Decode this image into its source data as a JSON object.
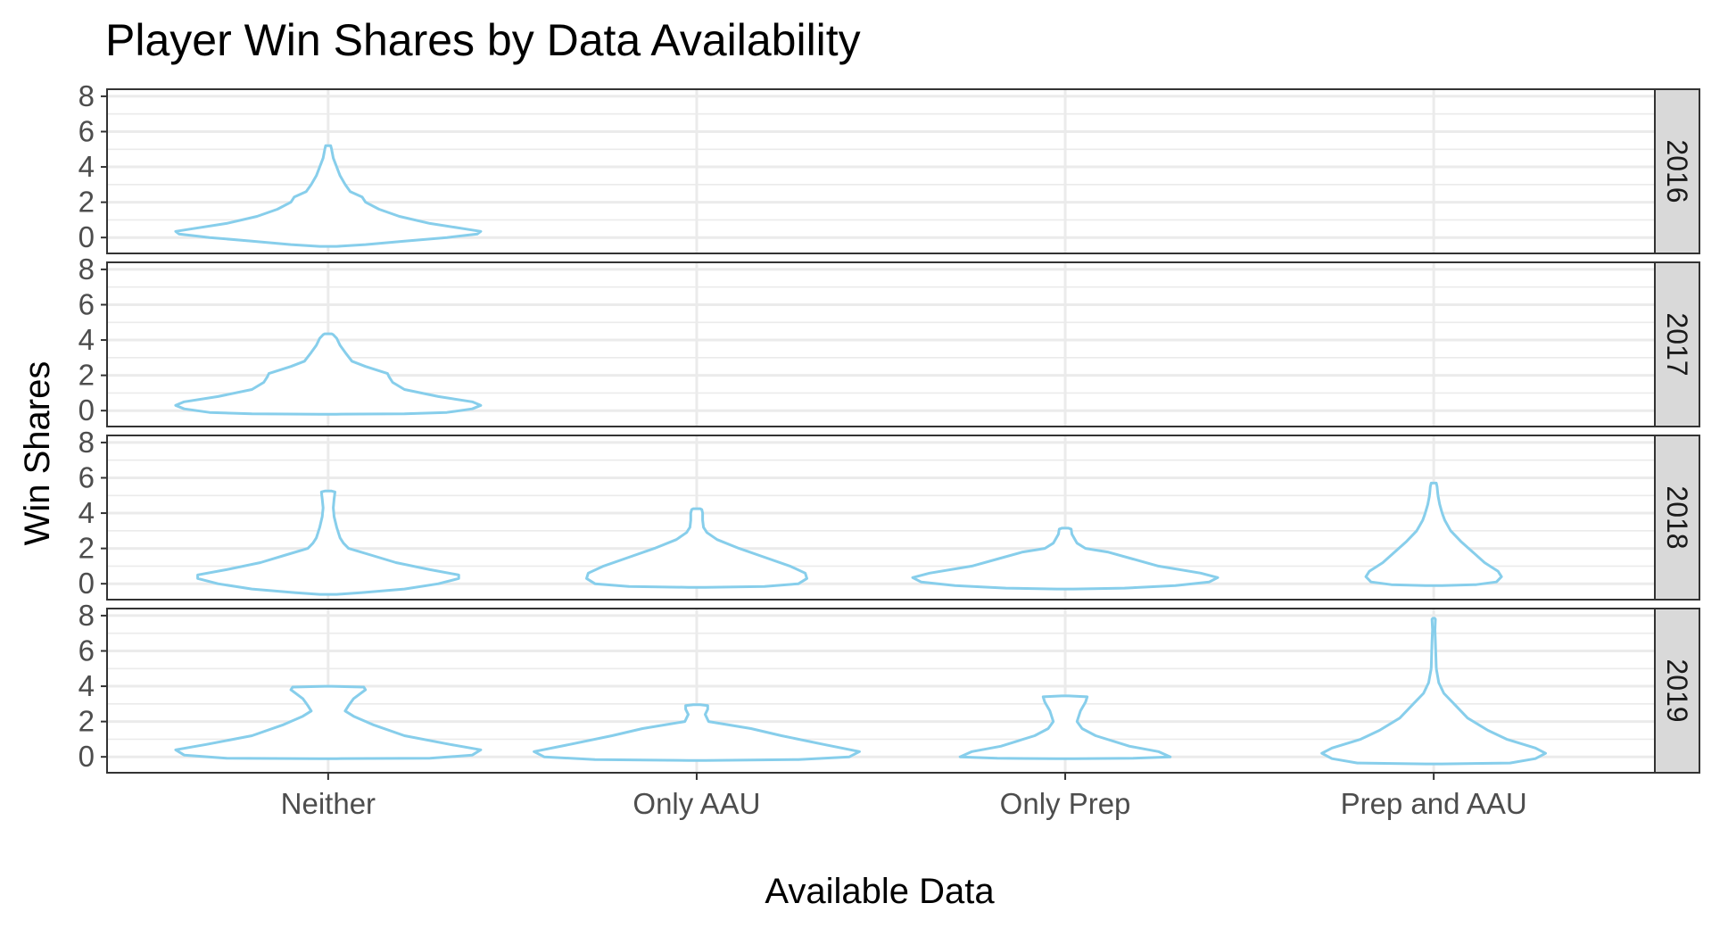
{
  "colors": {
    "violin_outline": "#87CEEB",
    "strip_fill": "#D9D9D9",
    "grid": "#EBEBEB"
  },
  "chart_data": {
    "type": "violin",
    "title": "Player Win Shares by Data Availability",
    "xlabel": "Available Data",
    "ylabel": "Win Shares",
    "categories": [
      "Neither",
      "Only AAU",
      "Only Prep",
      "Prep and AAU"
    ],
    "yticks": [
      0,
      2,
      4,
      6,
      8
    ],
    "ylim": [
      -0.9,
      8.4
    ],
    "grid": true,
    "facets": [
      {
        "label": "2016",
        "violins": [
          {
            "category": "Neither",
            "profile": [
              [
                -0.5,
                0.05
              ],
              [
                -0.4,
                0.22
              ],
              [
                -0.2,
                0.45
              ],
              [
                0,
                0.7
              ],
              [
                0.2,
                0.88
              ],
              [
                0.35,
                0.9
              ],
              [
                0.5,
                0.8
              ],
              [
                0.8,
                0.6
              ],
              [
                1.2,
                0.42
              ],
              [
                1.6,
                0.3
              ],
              [
                2.0,
                0.22
              ],
              [
                2.3,
                0.2
              ],
              [
                2.6,
                0.13
              ],
              [
                3.0,
                0.1
              ],
              [
                3.5,
                0.07
              ],
              [
                4.0,
                0.05
              ],
              [
                4.5,
                0.03
              ],
              [
                5.0,
                0.02
              ],
              [
                5.2,
                0.015
              ]
            ]
          }
        ]
      },
      {
        "label": "2017",
        "violins": [
          {
            "category": "Neither",
            "profile": [
              [
                -0.2,
                0.05
              ],
              [
                -0.18,
                0.45
              ],
              [
                -0.1,
                0.7
              ],
              [
                0.1,
                0.85
              ],
              [
                0.3,
                0.9
              ],
              [
                0.5,
                0.85
              ],
              [
                0.8,
                0.65
              ],
              [
                1.2,
                0.45
              ],
              [
                1.6,
                0.38
              ],
              [
                1.9,
                0.36
              ],
              [
                2.1,
                0.35
              ],
              [
                2.5,
                0.22
              ],
              [
                2.8,
                0.14
              ],
              [
                3.3,
                0.1
              ],
              [
                3.7,
                0.07
              ],
              [
                4.1,
                0.05
              ],
              [
                4.3,
                0.03
              ],
              [
                4.35,
                0.02
              ]
            ]
          }
        ]
      },
      {
        "label": "2018",
        "violins": [
          {
            "category": "Neither",
            "profile": [
              [
                -0.6,
                0.05
              ],
              [
                -0.5,
                0.2
              ],
              [
                -0.3,
                0.45
              ],
              [
                0,
                0.65
              ],
              [
                0.3,
                0.77
              ],
              [
                0.5,
                0.77
              ],
              [
                0.8,
                0.6
              ],
              [
                1.2,
                0.4
              ],
              [
                1.6,
                0.26
              ],
              [
                2.0,
                0.12
              ],
              [
                2.3,
                0.09
              ],
              [
                2.6,
                0.07
              ],
              [
                3.2,
                0.05
              ],
              [
                3.8,
                0.035
              ],
              [
                4.3,
                0.03
              ],
              [
                4.8,
                0.035
              ],
              [
                5.2,
                0.04
              ],
              [
                5.25,
                0.02
              ]
            ]
          },
          {
            "category": "Only AAU",
            "profile": [
              [
                -0.2,
                0.05
              ],
              [
                -0.15,
                0.4
              ],
              [
                0,
                0.6
              ],
              [
                0.3,
                0.65
              ],
              [
                0.6,
                0.64
              ],
              [
                1.0,
                0.55
              ],
              [
                1.5,
                0.4
              ],
              [
                2.0,
                0.25
              ],
              [
                2.5,
                0.12
              ],
              [
                2.9,
                0.06
              ],
              [
                3.2,
                0.04
              ],
              [
                3.6,
                0.035
              ],
              [
                4.0,
                0.035
              ],
              [
                4.2,
                0.03
              ],
              [
                4.25,
                0.02
              ]
            ]
          },
          {
            "category": "Only Prep",
            "profile": [
              [
                -0.3,
                0.05
              ],
              [
                -0.25,
                0.35
              ],
              [
                -0.1,
                0.65
              ],
              [
                0.1,
                0.85
              ],
              [
                0.35,
                0.9
              ],
              [
                0.6,
                0.8
              ],
              [
                1.0,
                0.55
              ],
              [
                1.4,
                0.4
              ],
              [
                1.8,
                0.25
              ],
              [
                2.0,
                0.12
              ],
              [
                2.3,
                0.07
              ],
              [
                2.8,
                0.04
              ],
              [
                3.1,
                0.035
              ],
              [
                3.15,
                0.02
              ]
            ]
          },
          {
            "category": "Prep and AAU",
            "profile": [
              [
                -0.1,
                0.05
              ],
              [
                -0.05,
                0.25
              ],
              [
                0.1,
                0.37
              ],
              [
                0.4,
                0.4
              ],
              [
                0.7,
                0.38
              ],
              [
                1.2,
                0.3
              ],
              [
                1.8,
                0.23
              ],
              [
                2.4,
                0.16
              ],
              [
                3.0,
                0.1
              ],
              [
                3.6,
                0.065
              ],
              [
                4.0,
                0.05
              ],
              [
                4.5,
                0.035
              ],
              [
                5.0,
                0.025
              ],
              [
                5.5,
                0.02
              ],
              [
                5.7,
                0.015
              ]
            ]
          }
        ]
      },
      {
        "label": "2019",
        "violins": [
          {
            "category": "Neither",
            "profile": [
              [
                -0.1,
                0.05
              ],
              [
                -0.08,
                0.6
              ],
              [
                0.1,
                0.85
              ],
              [
                0.4,
                0.9
              ],
              [
                0.7,
                0.72
              ],
              [
                1.2,
                0.45
              ],
              [
                1.8,
                0.27
              ],
              [
                2.3,
                0.15
              ],
              [
                2.6,
                0.1
              ],
              [
                2.9,
                0.12
              ],
              [
                3.3,
                0.15
              ],
              [
                3.8,
                0.22
              ],
              [
                3.95,
                0.21
              ],
              [
                4.0,
                0.02
              ]
            ]
          },
          {
            "category": "Only AAU",
            "profile": [
              [
                -0.2,
                0.05
              ],
              [
                -0.15,
                0.6
              ],
              [
                0,
                0.9
              ],
              [
                0.3,
                0.96
              ],
              [
                0.7,
                0.75
              ],
              [
                1.2,
                0.5
              ],
              [
                1.6,
                0.32
              ],
              [
                2.0,
                0.07
              ],
              [
                2.4,
                0.05
              ],
              [
                2.7,
                0.065
              ],
              [
                2.9,
                0.065
              ],
              [
                2.95,
                0.02
              ]
            ]
          },
          {
            "category": "Only Prep",
            "profile": [
              [
                -0.1,
                0.05
              ],
              [
                -0.08,
                0.4
              ],
              [
                0,
                0.62
              ],
              [
                0.3,
                0.55
              ],
              [
                0.6,
                0.38
              ],
              [
                1.2,
                0.18
              ],
              [
                1.6,
                0.1
              ],
              [
                2.0,
                0.07
              ],
              [
                2.6,
                0.09
              ],
              [
                3.1,
                0.12
              ],
              [
                3.4,
                0.13
              ],
              [
                3.45,
                0.02
              ]
            ]
          },
          {
            "category": "Prep and AAU",
            "profile": [
              [
                -0.4,
                0.05
              ],
              [
                -0.35,
                0.45
              ],
              [
                -0.1,
                0.6
              ],
              [
                0.2,
                0.66
              ],
              [
                0.5,
                0.6
              ],
              [
                1.0,
                0.43
              ],
              [
                1.5,
                0.32
              ],
              [
                2.2,
                0.2
              ],
              [
                3.0,
                0.12
              ],
              [
                3.6,
                0.06
              ],
              [
                4.2,
                0.03
              ],
              [
                5.0,
                0.015
              ],
              [
                6.5,
                0.01
              ],
              [
                7.2,
                0.007
              ],
              [
                7.8,
                0.01
              ],
              [
                7.85,
                0.005
              ]
            ]
          }
        ]
      }
    ]
  }
}
